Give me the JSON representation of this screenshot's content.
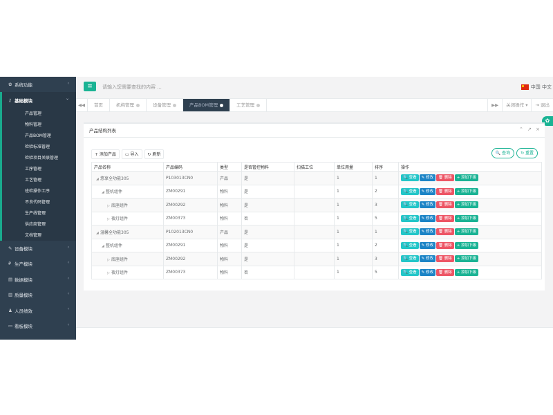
{
  "sidebar": {
    "modules": [
      {
        "icon": "gear-icon",
        "glyph": "✿",
        "label": "系统功能"
      },
      {
        "icon": "key-icon",
        "glyph": "⚷",
        "label": "基础模块"
      },
      {
        "icon": "wrench-icon",
        "glyph": "✎",
        "label": "设备模块"
      },
      {
        "icon": "yen-icon",
        "glyph": "₽",
        "label": "生产模块"
      },
      {
        "icon": "file-icon",
        "glyph": "▤",
        "label": "数据模块"
      },
      {
        "icon": "bar-chart-icon",
        "glyph": "▥",
        "label": "质量模块"
      },
      {
        "icon": "user-icon",
        "glyph": "♟",
        "label": "人员绩效"
      },
      {
        "icon": "monitor-icon",
        "glyph": "▭",
        "label": "看板模块"
      }
    ],
    "sub_items": [
      "产品管理",
      "物料管理",
      "产品BOM管理",
      "检验标准管理",
      "检验项目关联管理",
      "工序管理",
      "工艺管理",
      "班检操作工序",
      "不良代码管理",
      "生产线管理",
      "供应商管理",
      "文档管理"
    ]
  },
  "header": {
    "menu_icon": "≡",
    "search_placeholder": "请输入您需要查找的内容 ...",
    "language": "中国 中文"
  },
  "tabs": {
    "prev": "◀◀",
    "next": "▶▶",
    "items": [
      "首页",
      "机构管理",
      "设备管理",
      "产品BOM管理",
      "工艺管理"
    ],
    "active_index": 3,
    "close_ops": "关闭操作 ▾",
    "logout": "⇥ 退出"
  },
  "panel": {
    "title": "产品结构列表",
    "tools": "⌃ ↗ ×",
    "toolbar": [
      "+ 添加产品",
      "▭ 导入",
      "↻ 刷新"
    ],
    "search_button": "🔍 查询",
    "reset_button": "↻ 重置",
    "columns": [
      "产品名称",
      "产品编码",
      "类型",
      "是否管控物料",
      "扫描工位",
      "单位用量",
      "排序",
      "操作"
    ],
    "rows": [
      {
        "level": 0,
        "toggle": "◢",
        "name": "悠享全功能305",
        "code": "P103013CN0",
        "type": "产品",
        "controlled": "是",
        "station": "",
        "qty": "1",
        "sort": "1"
      },
      {
        "level": 1,
        "toggle": "◢",
        "name": "整机组件",
        "code": "ZM00291",
        "type": "物料",
        "controlled": "是",
        "station": "",
        "qty": "1",
        "sort": "2"
      },
      {
        "level": 2,
        "toggle": "▷",
        "name": "底座组件",
        "code": "ZM00292",
        "type": "物料",
        "controlled": "是",
        "station": "",
        "qty": "1",
        "sort": "3"
      },
      {
        "level": 2,
        "toggle": "▷",
        "name": "夜灯组件",
        "code": "ZM00373",
        "type": "物料",
        "controlled": "否",
        "station": "",
        "qty": "1",
        "sort": "5"
      },
      {
        "level": 0,
        "toggle": "◢",
        "name": "温馨全功能305",
        "code": "P102013CN0",
        "type": "产品",
        "controlled": "是",
        "station": "",
        "qty": "1",
        "sort": "1"
      },
      {
        "level": 1,
        "toggle": "◢",
        "name": "整机组件",
        "code": "ZM00291",
        "type": "物料",
        "controlled": "是",
        "station": "",
        "qty": "1",
        "sort": "2"
      },
      {
        "level": 2,
        "toggle": "▷",
        "name": "底座组件",
        "code": "ZM00292",
        "type": "物料",
        "controlled": "是",
        "station": "",
        "qty": "1",
        "sort": "3"
      },
      {
        "level": 2,
        "toggle": "▷",
        "name": "夜灯组件",
        "code": "ZM00373",
        "type": "物料",
        "controlled": "否",
        "station": "",
        "qty": "1",
        "sort": "5"
      }
    ],
    "actions": [
      "🔍 查看",
      "✎ 修改",
      "🗑 删除",
      "+ 添加下级"
    ]
  },
  "colors": {
    "sidebar": "#2f4050",
    "accent": "#1ab394",
    "view": "#23c6c8",
    "edit": "#1c84c6",
    "delete": "#ed5565"
  }
}
